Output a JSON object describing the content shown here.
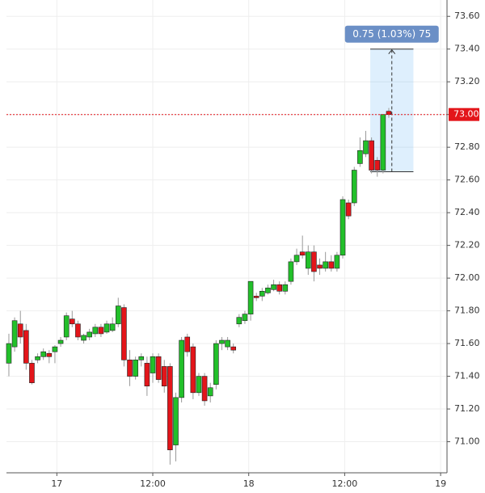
{
  "chart_data": {
    "type": "candlestick",
    "x": [
      -6,
      -5.28,
      -4.56,
      -3.84,
      -3.12,
      -2.4,
      -1.68,
      -0.96,
      -0.24,
      0.48,
      1.2,
      1.92,
      2.64,
      3.36,
      4.08,
      4.8,
      5.52,
      6.24,
      6.96,
      7.68,
      8.4,
      9.12,
      9.84,
      10.56,
      11.28,
      12,
      12.72,
      13.44,
      14.16,
      14.88,
      15.6,
      16.32,
      17.04,
      17.76,
      18.48,
      19.2,
      19.92,
      20.64,
      21.36,
      22.08,
      22.8,
      23.52,
      24.24,
      24.96,
      25.68,
      26.4,
      27.12,
      27.84,
      28.56,
      29.28,
      30,
      30.72,
      31.44,
      32.16,
      32.88,
      33.6,
      34.32,
      35.04,
      35.76,
      36.48,
      37.2,
      37.92,
      38.64,
      39.36,
      40.08,
      40.8,
      41.52
    ],
    "open": [
      71.48,
      71.58,
      71.72,
      71.68,
      71.48,
      71.5,
      71.52,
      71.54,
      71.55,
      71.6,
      71.64,
      71.75,
      71.72,
      71.62,
      71.64,
      71.66,
      71.7,
      71.67,
      71.68,
      71.72,
      71.82,
      71.5,
      71.4,
      71.5,
      71.48,
      71.42,
      71.52,
      71.46,
      71.46,
      70.98,
      71.27,
      71.64,
      71.58,
      71.3,
      71.4,
      71.28,
      71.35,
      71.6,
      71.58,
      71.58,
      71.72,
      71.74,
      71.78,
      71.89,
      71.89,
      71.91,
      71.93,
      71.96,
      71.92,
      71.98,
      72.1,
      72.16,
      72.06,
      72.16,
      72.08,
      72.06,
      72.1,
      72.06,
      72.14,
      72.46,
      72.46,
      72.7,
      72.76,
      72.84,
      72.72,
      72.66,
      73.02
    ],
    "high": [
      71.66,
      71.76,
      71.8,
      71.72,
      71.5,
      71.54,
      71.57,
      71.56,
      71.59,
      71.64,
      71.79,
      71.8,
      71.74,
      71.66,
      71.69,
      71.72,
      71.72,
      71.74,
      71.76,
      71.88,
      71.84,
      71.56,
      71.52,
      71.54,
      71.52,
      71.54,
      71.54,
      71.5,
      71.48,
      71.3,
      71.64,
      71.66,
      71.6,
      71.42,
      71.42,
      71.36,
      71.62,
      71.64,
      71.64,
      71.6,
      71.78,
      71.8,
      71.98,
      71.91,
      71.94,
      71.96,
      71.99,
      71.98,
      71.98,
      72.12,
      72.18,
      72.26,
      72.2,
      72.2,
      72.12,
      72.16,
      72.14,
      72.16,
      72.5,
      72.48,
      72.68,
      72.86,
      72.9,
      72.86,
      72.74,
      73.0,
      73.04
    ],
    "low": [
      71.4,
      71.55,
      71.6,
      71.44,
      71.35,
      71.48,
      71.5,
      71.48,
      71.48,
      71.58,
      71.62,
      71.7,
      71.62,
      71.6,
      71.62,
      71.64,
      71.64,
      71.66,
      71.67,
      71.7,
      71.46,
      71.34,
      71.38,
      71.46,
      71.28,
      71.36,
      71.36,
      71.3,
      70.86,
      70.88,
      71.24,
      71.52,
      71.26,
      71.28,
      71.22,
      71.24,
      71.32,
      71.56,
      71.56,
      71.54,
      71.7,
      71.72,
      71.74,
      71.86,
      71.86,
      71.9,
      71.92,
      71.9,
      71.9,
      71.96,
      72.08,
      72.12,
      72.02,
      71.98,
      72.02,
      72.04,
      72.04,
      72.04,
      72.12,
      72.36,
      72.44,
      72.68,
      72.74,
      72.64,
      72.62,
      72.64,
      72.98
    ],
    "close": [
      71.6,
      71.74,
      71.64,
      71.48,
      71.36,
      71.52,
      71.55,
      71.52,
      71.58,
      71.62,
      71.77,
      71.72,
      71.64,
      71.65,
      71.67,
      71.7,
      71.66,
      71.72,
      71.72,
      71.83,
      71.5,
      71.4,
      71.5,
      71.52,
      71.34,
      71.52,
      71.38,
      71.34,
      70.95,
      71.27,
      71.62,
      71.55,
      71.3,
      71.4,
      71.25,
      71.33,
      71.6,
      71.62,
      71.62,
      71.56,
      71.76,
      71.78,
      71.98,
      71.88,
      71.92,
      71.94,
      71.96,
      71.92,
      71.96,
      72.1,
      72.14,
      72.14,
      72.16,
      72.04,
      72.06,
      72.1,
      72.06,
      72.14,
      72.48,
      72.38,
      72.66,
      72.78,
      72.84,
      72.66,
      72.66,
      73.0,
      73.0
    ],
    "up_color": "#22c02a",
    "down_color": "#e3151a",
    "xlim": [
      -6.3,
      48.8
    ],
    "xticks": [
      {
        "value": 0,
        "label": "17"
      },
      {
        "value": 12,
        "label": "12:00"
      },
      {
        "value": 24,
        "label": "18"
      },
      {
        "value": 36,
        "label": "12:00"
      },
      {
        "value": 48,
        "label": "19"
      }
    ],
    "ylim": [
      70.81,
      73.7
    ],
    "yticks": [
      {
        "value": 71,
        "label": "71.00"
      },
      {
        "value": 71.2,
        "label": "71.20"
      },
      {
        "value": 71.4,
        "label": "71.40"
      },
      {
        "value": 71.6,
        "label": "71.60"
      },
      {
        "value": 71.8,
        "label": "71.80"
      },
      {
        "value": 72,
        "label": "72.00"
      },
      {
        "value": 72.2,
        "label": "72.20"
      },
      {
        "value": 72.4,
        "label": "72.40"
      },
      {
        "value": 72.6,
        "label": "72.60"
      },
      {
        "value": 72.8,
        "label": "72.80"
      },
      {
        "value": 73,
        "label": "73.00"
      },
      {
        "value": 73.2,
        "label": "73.20"
      },
      {
        "value": 73.4,
        "label": "73.40"
      },
      {
        "value": 73.6,
        "label": "73.60"
      }
    ],
    "grid": true,
    "last_price": {
      "value": 73,
      "label": "73.00",
      "color": "#e3151a"
    },
    "measure": {
      "label": "0.75 (1.03%) 75",
      "from": 72.65,
      "to": 73.4,
      "x_from": 39.2,
      "x_to": 44.6,
      "color": "#6b8fc6"
    }
  }
}
